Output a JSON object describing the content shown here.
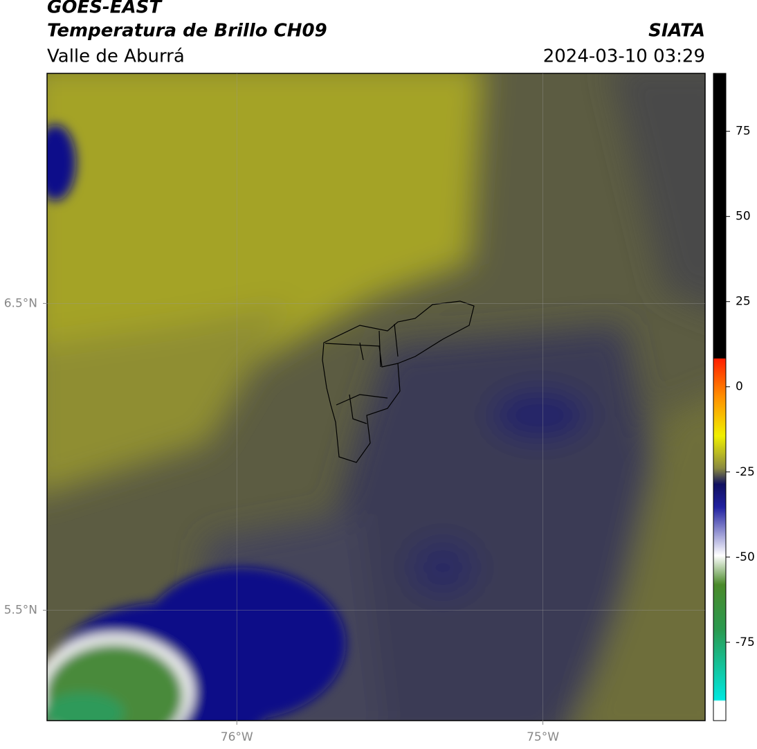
{
  "header": {
    "title": "GOES-EAST",
    "subtitle": "Temperatura de Brillo CH09",
    "region": "Valle de Aburrá",
    "source": "SIATA",
    "datetime": "2024-03-10 03:29"
  },
  "map": {
    "xlim": [
      -76.62,
      -74.47
    ],
    "ylim": [
      5.14,
      7.25
    ],
    "xticks": [
      {
        "value": -76,
        "label": "76°W"
      },
      {
        "value": -75,
        "label": "75°W"
      }
    ],
    "yticks": [
      {
        "value": 6.5,
        "label": "6.5°N"
      },
      {
        "value": 5.5,
        "label": "5.5°N"
      }
    ],
    "grid": true
  },
  "colorbar": {
    "lim": [
      -98,
      92
    ],
    "ticks": [
      75,
      50,
      25,
      0,
      -25,
      -50,
      -75
    ]
  }
}
